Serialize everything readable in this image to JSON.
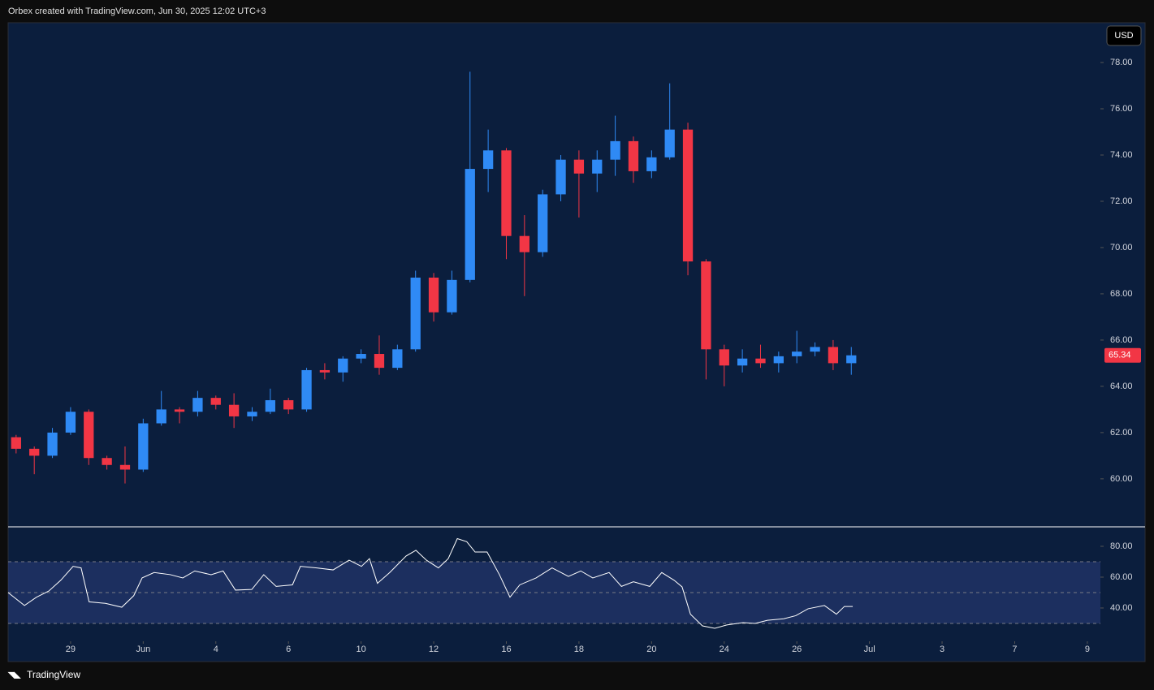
{
  "header": {
    "title": "Orbex created with TradingView.com, Jun 30, 2025 12:02 UTC+3",
    "currency": "USD"
  },
  "footer": {
    "logo": "TradingView"
  },
  "chart_data": [
    {
      "type": "candlestick",
      "up_color": "#2f8af5",
      "down_color": "#f23645",
      "x": [
        -1.5,
        -1,
        -0.5,
        0,
        0.5,
        1,
        1.5,
        2,
        2.5,
        3,
        3.5,
        4,
        4.5,
        5,
        5.5,
        6,
        6.5,
        7,
        7.5,
        8,
        8.5,
        9,
        9.5,
        10,
        10.5,
        11,
        11.5,
        12,
        12.5,
        13,
        13.5,
        14,
        14.5,
        15,
        15.5,
        16,
        16.5,
        17,
        17.5,
        18,
        18.5,
        19,
        19.5,
        20,
        20.5,
        21,
        21.5
      ],
      "open": [
        61.8,
        61.3,
        61.0,
        62.0,
        62.9,
        60.9,
        60.6,
        60.4,
        62.4,
        63.0,
        62.9,
        63.5,
        63.2,
        62.7,
        62.9,
        63.4,
        63.0,
        64.7,
        64.6,
        65.2,
        65.4,
        64.8,
        65.6,
        68.7,
        67.2,
        68.6,
        73.4,
        74.2,
        70.5,
        69.8,
        72.3,
        73.8,
        73.2,
        73.8,
        74.6,
        73.3,
        73.9,
        75.1,
        69.4,
        65.6,
        64.9,
        65.2,
        65.0,
        65.3,
        65.5,
        65.7,
        65.0
      ],
      "high": [
        61.9,
        61.4,
        62.2,
        63.1,
        63.0,
        61.0,
        61.4,
        62.6,
        63.8,
        63.1,
        63.8,
        63.6,
        63.7,
        63.1,
        63.9,
        63.5,
        64.8,
        65.0,
        65.3,
        65.6,
        66.2,
        65.8,
        69.0,
        68.9,
        69.0,
        77.6,
        75.1,
        74.3,
        71.4,
        72.5,
        74.0,
        74.2,
        74.2,
        75.7,
        74.8,
        74.2,
        77.1,
        75.4,
        69.5,
        65.8,
        65.6,
        65.8,
        65.5,
        66.4,
        65.9,
        66.0,
        65.7
      ],
      "low": [
        61.1,
        60.2,
        60.9,
        61.9,
        60.6,
        60.4,
        59.8,
        60.3,
        62.3,
        62.4,
        62.7,
        63.0,
        62.2,
        62.5,
        62.8,
        62.8,
        62.9,
        64.3,
        64.2,
        65.0,
        64.5,
        64.7,
        65.5,
        66.8,
        67.1,
        68.5,
        72.4,
        69.5,
        67.9,
        69.6,
        72.0,
        71.3,
        72.4,
        73.1,
        72.8,
        73.0,
        73.8,
        68.8,
        64.3,
        64.0,
        64.6,
        64.8,
        64.6,
        65.0,
        65.3,
        64.7,
        64.5
      ],
      "close": [
        61.3,
        61.0,
        62.0,
        62.9,
        60.9,
        60.6,
        60.4,
        62.4,
        63.0,
        62.9,
        63.5,
        63.2,
        62.7,
        62.9,
        63.4,
        63.0,
        64.7,
        64.6,
        65.2,
        65.4,
        64.8,
        65.6,
        68.7,
        67.2,
        68.6,
        73.4,
        74.2,
        70.5,
        69.8,
        72.3,
        73.8,
        73.2,
        73.8,
        74.6,
        73.3,
        73.9,
        75.1,
        69.4,
        65.6,
        64.9,
        65.2,
        65.0,
        65.3,
        65.5,
        65.7,
        65.0,
        65.34
      ],
      "last_price": 65.34,
      "ylim": [
        57.96,
        79.72
      ],
      "yticks": [
        {
          "value": 60,
          "label": "60.00"
        },
        {
          "value": 62,
          "label": "62.00"
        },
        {
          "value": 64,
          "label": "64.00"
        },
        {
          "value": 66,
          "label": "66.00"
        },
        {
          "value": 68,
          "label": "68.00"
        },
        {
          "value": 70,
          "label": "70.00"
        },
        {
          "value": 72,
          "label": "72.00"
        },
        {
          "value": 74,
          "label": "74.00"
        },
        {
          "value": 76,
          "label": "76.00"
        },
        {
          "value": 78,
          "label": "78.00"
        }
      ]
    },
    {
      "type": "line",
      "color": "#ffffff",
      "x": [
        -1.72,
        -1.27,
        -0.94,
        -0.6,
        -0.27,
        0.07,
        0.29,
        0.51,
        0.96,
        1.41,
        1.74,
        1.97,
        2.3,
        2.75,
        3.09,
        3.42,
        3.87,
        4.2,
        4.54,
        4.99,
        5.32,
        5.66,
        6.11,
        6.33,
        6.78,
        7.23,
        7.67,
        8.01,
        8.23,
        8.45,
        8.79,
        9.24,
        9.51,
        9.8,
        10.13,
        10.4,
        10.65,
        10.91,
        11.14,
        11.47,
        11.81,
        12.1,
        12.37,
        12.82,
        13.26,
        13.71,
        14.05,
        14.38,
        14.83,
        15.17,
        15.5,
        15.95,
        16.28,
        16.62,
        16.84,
        17.07,
        17.4,
        17.74,
        18.07,
        18.52,
        18.85,
        19.19,
        19.64,
        19.97,
        20.31,
        20.76,
        21.09,
        21.31,
        21.54
      ],
      "values": [
        50,
        41.6,
        47,
        51,
        58,
        67,
        66,
        44,
        43,
        40.5,
        48,
        59.5,
        63,
        61.6,
        59.5,
        64,
        61.6,
        64,
        51.6,
        52,
        61.6,
        54,
        55,
        67,
        66,
        64.7,
        71,
        67,
        72,
        56,
        63,
        73.7,
        77.4,
        71,
        66,
        72,
        85,
        83,
        76.3,
        76.3,
        61.6,
        47,
        55,
        59.5,
        66,
        60.5,
        64,
        59.5,
        63,
        54,
        57,
        54,
        63,
        58,
        53.7,
        36,
        28.4,
        26.8,
        29,
        30.5,
        30,
        32,
        33,
        35,
        39.5,
        41.6,
        36,
        41,
        41
      ],
      "bands": [
        70,
        50,
        30
      ],
      "ylim": [
        18.4,
        92.1
      ],
      "yticks": [
        {
          "value": 40,
          "label": "40.00"
        },
        {
          "value": 60,
          "label": "60.00"
        },
        {
          "value": 80,
          "label": "80.00"
        }
      ],
      "xlim": [
        -1.72,
        28.36
      ],
      "xticks": [
        {
          "value": 0,
          "label": "29"
        },
        {
          "value": 2,
          "label": "Jun"
        },
        {
          "value": 4,
          "label": "4"
        },
        {
          "value": 6,
          "label": "6"
        },
        {
          "value": 8,
          "label": "10"
        },
        {
          "value": 10,
          "label": "12"
        },
        {
          "value": 12,
          "label": "16"
        },
        {
          "value": 14,
          "label": "18"
        },
        {
          "value": 16,
          "label": "20"
        },
        {
          "value": 18,
          "label": "24"
        },
        {
          "value": 20,
          "label": "26"
        },
        {
          "value": 22,
          "label": "Jul"
        },
        {
          "value": 24,
          "label": "3"
        },
        {
          "value": 26,
          "label": "7"
        },
        {
          "value": 28,
          "label": "9"
        }
      ]
    }
  ]
}
